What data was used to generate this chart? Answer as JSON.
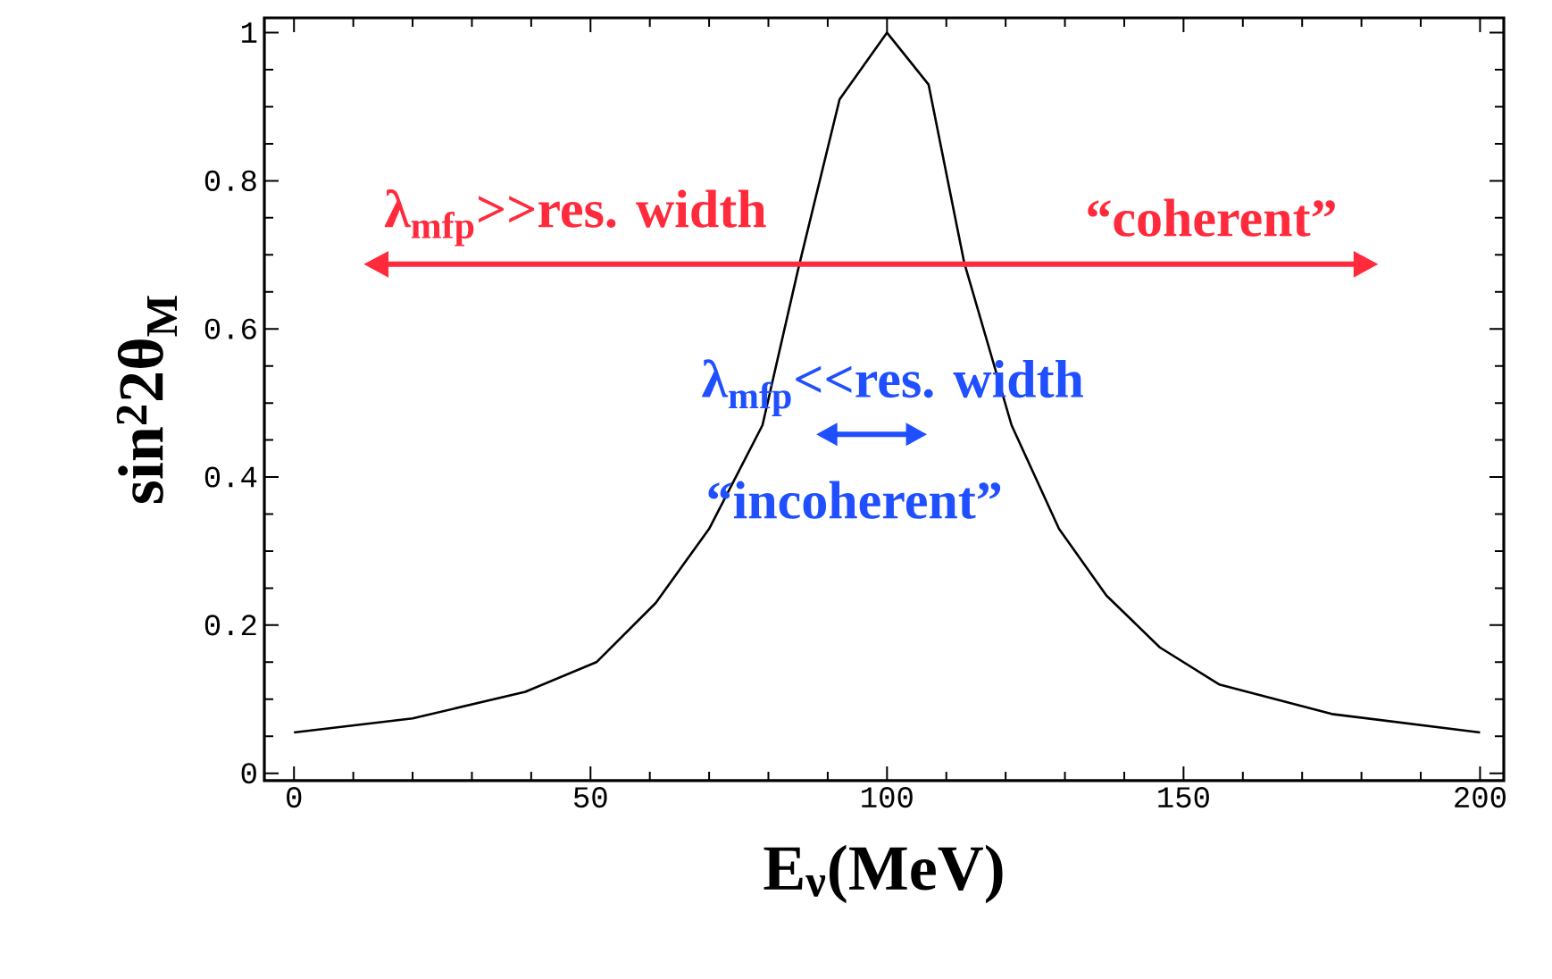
{
  "chart_data": {
    "type": "line",
    "xlabel": "E$_{ν}$(MeV)",
    "ylabel": "sin$^{2}$2θ$_{M}$",
    "x": [
      0,
      20,
      39,
      51,
      61,
      70,
      79,
      85,
      92,
      100,
      107,
      113,
      121,
      129,
      137,
      146,
      156,
      175,
      200
    ],
    "values": [
      0.055,
      0.074,
      0.11,
      0.15,
      0.23,
      0.33,
      0.47,
      0.68,
      0.91,
      1.0,
      0.93,
      0.69,
      0.47,
      0.33,
      0.24,
      0.17,
      0.12,
      0.08,
      0.055
    ],
    "color": "#000000",
    "marker": "none",
    "line_style": "solid",
    "xlim": [
      -5,
      204
    ],
    "ylim": [
      -0.01,
      1.02
    ],
    "xticks": [
      0,
      50,
      100,
      150,
      200
    ],
    "yticks": [
      0,
      0.2,
      0.4,
      0.6,
      0.8,
      1
    ],
    "annotations": [
      "λ$_{mfp}$>>res. width",
      "“coherent”",
      "λ$_{mfp}$<<res. width",
      "“incoherent”"
    ]
  }
}
